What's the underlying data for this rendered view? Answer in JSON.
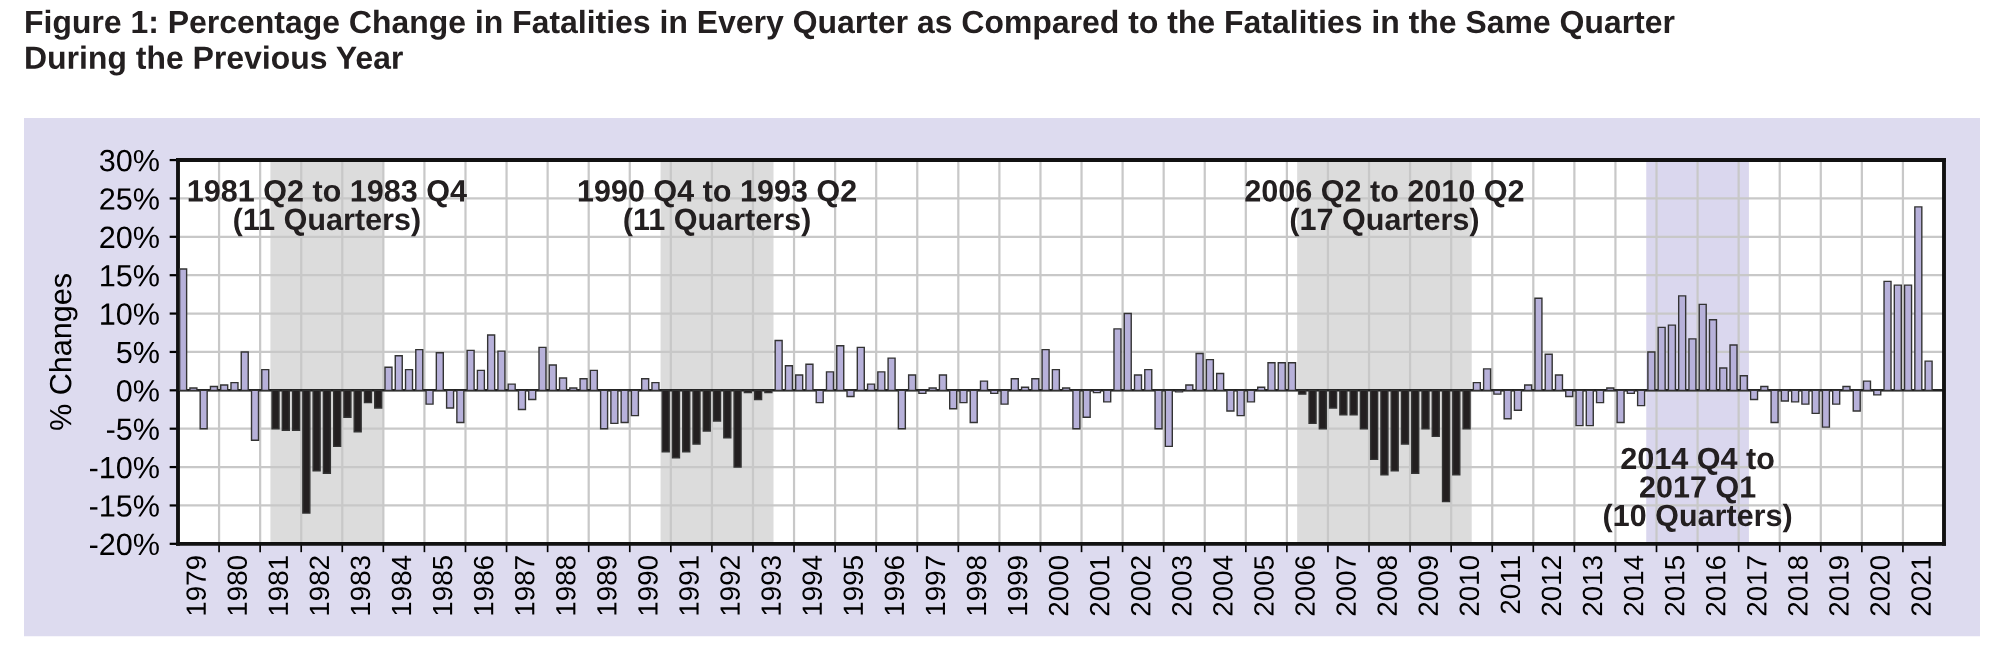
{
  "chart_data": {
    "type": "bar",
    "title": "Figure 1: Percentage Change in Fatalities in Every Quarter as Compared to the Fatalities in the Same Quarter\nDuring the Previous Year",
    "ylabel": "% Changes",
    "x": [
      1979.125,
      1979.375,
      1979.625,
      1979.875,
      1980.125,
      1980.375,
      1980.625,
      1980.875,
      1981.125,
      1981.375,
      1981.625,
      1981.875,
      1982.125,
      1982.375,
      1982.625,
      1982.875,
      1983.125,
      1983.375,
      1983.625,
      1983.875,
      1984.125,
      1984.375,
      1984.625,
      1984.875,
      1985.125,
      1985.375,
      1985.625,
      1985.875,
      1986.125,
      1986.375,
      1986.625,
      1986.875,
      1987.125,
      1987.375,
      1987.625,
      1987.875,
      1988.125,
      1988.375,
      1988.625,
      1988.875,
      1989.125,
      1989.375,
      1989.625,
      1989.875,
      1990.125,
      1990.375,
      1990.625,
      1990.875,
      1991.125,
      1991.375,
      1991.625,
      1991.875,
      1992.125,
      1992.375,
      1992.625,
      1992.875,
      1993.125,
      1993.375,
      1993.625,
      1993.875,
      1994.125,
      1994.375,
      1994.625,
      1994.875,
      1995.125,
      1995.375,
      1995.625,
      1995.875,
      1996.125,
      1996.375,
      1996.625,
      1996.875,
      1997.125,
      1997.375,
      1997.625,
      1997.875,
      1998.125,
      1998.375,
      1998.625,
      1998.875,
      1999.125,
      1999.375,
      1999.625,
      1999.875,
      2000.125,
      2000.375,
      2000.625,
      2000.875,
      2001.125,
      2001.375,
      2001.625,
      2001.875,
      2002.125,
      2002.375,
      2002.625,
      2002.875,
      2003.125,
      2003.375,
      2003.625,
      2003.875,
      2004.125,
      2004.375,
      2004.625,
      2004.875,
      2005.125,
      2005.375,
      2005.625,
      2005.875,
      2006.125,
      2006.375,
      2006.625,
      2006.875,
      2007.125,
      2007.375,
      2007.625,
      2007.875,
      2008.125,
      2008.375,
      2008.625,
      2008.875,
      2009.125,
      2009.375,
      2009.625,
      2009.875,
      2010.125,
      2010.375,
      2010.625,
      2010.875,
      2011.125,
      2011.375,
      2011.625,
      2011.875,
      2012.125,
      2012.375,
      2012.625,
      2012.875,
      2013.125,
      2013.375,
      2013.625,
      2013.875,
      2014.125,
      2014.375,
      2014.625,
      2014.875,
      2015.125,
      2015.375,
      2015.625,
      2015.875,
      2016.125,
      2016.375,
      2016.625,
      2016.875,
      2017.125,
      2017.375,
      2017.625,
      2017.875,
      2018.125,
      2018.375,
      2018.625,
      2018.875,
      2019.125,
      2019.375,
      2019.625,
      2019.875,
      2020.125,
      2020.375,
      2020.625,
      2020.875,
      2021.125,
      2021.375,
      2021.625
    ],
    "values": [
      15.8,
      0.3,
      -5,
      0.5,
      0.7,
      1,
      5,
      -6.5,
      2.7,
      -5,
      -5.2,
      -5.2,
      -16,
      -10.5,
      -10.8,
      -7.3,
      -3.5,
      -5.4,
      -1.6,
      -2.3,
      3,
      4.5,
      2.7,
      5.3,
      -1.8,
      4.9,
      -2.3,
      -4.2,
      5.2,
      2.6,
      7.2,
      5.1,
      0.8,
      -2.5,
      -1.2,
      5.6,
      3.3,
      1.6,
      0.3,
      1.5,
      2.6,
      -5,
      -4.3,
      -4.2,
      -3.3,
      1.5,
      1,
      -8,
      -8.8,
      -8,
      -7,
      -5.3,
      -4,
      -6.2,
      -10,
      -0.3,
      -1.2,
      -0.3,
      6.5,
      3.2,
      2,
      3.4,
      -1.6,
      2.4,
      5.8,
      -0.8,
      5.6,
      0.8,
      2.4,
      4.2,
      -5,
      2,
      -0.4,
      0.3,
      2,
      -2.4,
      -1.6,
      -4.2,
      1.2,
      -0.4,
      -1.8,
      1.5,
      0.4,
      1.5,
      5.3,
      2.7,
      0.3,
      -5,
      -3.5,
      -0.3,
      -1.5,
      8,
      10,
      2,
      2.7,
      -5,
      -7.3,
      -0.2,
      0.7,
      4.8,
      4,
      2.2,
      -2.7,
      -3.3,
      -1.5,
      0.4,
      3.6,
      3.6,
      3.6,
      -0.5,
      -4.3,
      -5,
      -2.3,
      -3.2,
      -3.2,
      -5,
      -9,
      -11,
      -10.5,
      -7,
      -10.8,
      -5,
      -6,
      -14.5,
      -11,
      -5,
      1,
      2.8,
      -0.5,
      -3.7,
      -2.6,
      0.7,
      12,
      4.7,
      2,
      -0.8,
      -4.6,
      -4.6,
      -1.6,
      0.3,
      -4.2,
      -0.4,
      -2,
      5,
      8.2,
      8.5,
      12.3,
      6.7,
      11.2,
      9.2,
      2.9,
      5.9,
      1.9,
      -1.2,
      0.5,
      -4.2,
      -1.4,
      -1.5,
      -1.8,
      -3,
      -4.8,
      -1.8,
      0.5,
      -2.7,
      1.2,
      -0.6,
      14.2,
      13.7,
      13.7,
      23.9,
      3.8
    ],
    "colors": [
      "#b7b1da",
      "#b7b1da",
      "#b7b1da",
      "#b7b1da",
      "#b7b1da",
      "#b7b1da",
      "#b7b1da",
      "#b7b1da",
      "#b7b1da",
      "#231f20",
      "#231f20",
      "#231f20",
      "#231f20",
      "#231f20",
      "#231f20",
      "#231f20",
      "#231f20",
      "#231f20",
      "#231f20",
      "#231f20",
      "#b7b1da",
      "#b7b1da",
      "#b7b1da",
      "#b7b1da",
      "#b7b1da",
      "#b7b1da",
      "#b7b1da",
      "#b7b1da",
      "#b7b1da",
      "#b7b1da",
      "#b7b1da",
      "#b7b1da",
      "#b7b1da",
      "#b7b1da",
      "#b7b1da",
      "#b7b1da",
      "#b7b1da",
      "#b7b1da",
      "#b7b1da",
      "#b7b1da",
      "#b7b1da",
      "#b7b1da",
      "#b7b1da",
      "#b7b1da",
      "#b7b1da",
      "#b7b1da",
      "#b7b1da",
      "#231f20",
      "#231f20",
      "#231f20",
      "#231f20",
      "#231f20",
      "#231f20",
      "#231f20",
      "#231f20",
      "#231f20",
      "#231f20",
      "#231f20",
      "#b7b1da",
      "#b7b1da",
      "#b7b1da",
      "#b7b1da",
      "#b7b1da",
      "#b7b1da",
      "#b7b1da",
      "#b7b1da",
      "#b7b1da",
      "#b7b1da",
      "#b7b1da",
      "#b7b1da",
      "#b7b1da",
      "#b7b1da",
      "#b7b1da",
      "#b7b1da",
      "#b7b1da",
      "#b7b1da",
      "#b7b1da",
      "#b7b1da",
      "#b7b1da",
      "#b7b1da",
      "#b7b1da",
      "#b7b1da",
      "#b7b1da",
      "#b7b1da",
      "#b7b1da",
      "#b7b1da",
      "#b7b1da",
      "#b7b1da",
      "#b7b1da",
      "#b7b1da",
      "#b7b1da",
      "#b7b1da",
      "#b7b1da",
      "#b7b1da",
      "#b7b1da",
      "#b7b1da",
      "#b7b1da",
      "#b7b1da",
      "#b7b1da",
      "#b7b1da",
      "#b7b1da",
      "#b7b1da",
      "#b7b1da",
      "#b7b1da",
      "#b7b1da",
      "#b7b1da",
      "#b7b1da",
      "#b7b1da",
      "#b7b1da",
      "#231f20",
      "#231f20",
      "#231f20",
      "#231f20",
      "#231f20",
      "#231f20",
      "#231f20",
      "#231f20",
      "#231f20",
      "#231f20",
      "#231f20",
      "#231f20",
      "#231f20",
      "#231f20",
      "#231f20",
      "#231f20",
      "#231f20",
      "#b7b1da",
      "#b7b1da",
      "#b7b1da",
      "#b7b1da",
      "#b7b1da",
      "#b7b1da",
      "#b7b1da",
      "#b7b1da",
      "#b7b1da",
      "#b7b1da",
      "#b7b1da",
      "#b7b1da",
      "#b7b1da",
      "#b7b1da",
      "#b7b1da",
      "#b7b1da",
      "#b7b1da",
      "#b7b1da",
      "#b7b1da",
      "#b7b1da",
      "#b7b1da",
      "#b7b1da",
      "#b7b1da",
      "#b7b1da",
      "#b7b1da",
      "#b7b1da",
      "#b7b1da",
      "#b7b1da",
      "#b7b1da",
      "#b7b1da",
      "#b7b1da",
      "#b7b1da",
      "#b7b1da",
      "#b7b1da",
      "#b7b1da",
      "#b7b1da",
      "#b7b1da",
      "#b7b1da",
      "#b7b1da",
      "#b7b1da",
      "#b7b1da",
      "#b7b1da",
      "#b7b1da",
      "#b7b1da",
      "#b7b1da"
    ],
    "xlim": [
      1979,
      2022
    ],
    "xticks": [
      {
        "value": 1979.5,
        "label": "1979"
      },
      {
        "value": 1980.5,
        "label": "1980"
      },
      {
        "value": 1981.5,
        "label": "1981"
      },
      {
        "value": 1982.5,
        "label": "1982"
      },
      {
        "value": 1983.5,
        "label": "1983"
      },
      {
        "value": 1984.5,
        "label": "1984"
      },
      {
        "value": 1985.5,
        "label": "1985"
      },
      {
        "value": 1986.5,
        "label": "1986"
      },
      {
        "value": 1987.5,
        "label": "1987"
      },
      {
        "value": 1988.5,
        "label": "1988"
      },
      {
        "value": 1989.5,
        "label": "1989"
      },
      {
        "value": 1990.5,
        "label": "1990"
      },
      {
        "value": 1991.5,
        "label": "1991"
      },
      {
        "value": 1992.5,
        "label": "1992"
      },
      {
        "value": 1993.5,
        "label": "1993"
      },
      {
        "value": 1994.5,
        "label": "1994"
      },
      {
        "value": 1995.5,
        "label": "1995"
      },
      {
        "value": 1996.5,
        "label": "1996"
      },
      {
        "value": 1997.5,
        "label": "1997"
      },
      {
        "value": 1998.5,
        "label": "1998"
      },
      {
        "value": 1999.5,
        "label": "1999"
      },
      {
        "value": 2000.5,
        "label": "2000"
      },
      {
        "value": 2001.5,
        "label": "2001"
      },
      {
        "value": 2002.5,
        "label": "2002"
      },
      {
        "value": 2003.5,
        "label": "2003"
      },
      {
        "value": 2004.5,
        "label": "2004"
      },
      {
        "value": 2005.5,
        "label": "2005"
      },
      {
        "value": 2006.5,
        "label": "2006"
      },
      {
        "value": 2007.5,
        "label": "2007"
      },
      {
        "value": 2008.5,
        "label": "2008"
      },
      {
        "value": 2009.5,
        "label": "2009"
      },
      {
        "value": 2010.5,
        "label": "2010"
      },
      {
        "value": 2011.5,
        "label": "2011"
      },
      {
        "value": 2012.5,
        "label": "2012"
      },
      {
        "value": 2013.5,
        "label": "2013"
      },
      {
        "value": 2014.5,
        "label": "2014"
      },
      {
        "value": 2015.5,
        "label": "2015"
      },
      {
        "value": 2016.5,
        "label": "2016"
      },
      {
        "value": 2017.5,
        "label": "2017"
      },
      {
        "value": 2018.5,
        "label": "2018"
      },
      {
        "value": 2019.5,
        "label": "2019"
      },
      {
        "value": 2020.5,
        "label": "2020"
      },
      {
        "value": 2021.5,
        "label": "2021"
      },
      {
        "value": 1980,
        "label": null
      },
      {
        "value": 1981,
        "label": null
      },
      {
        "value": 1982,
        "label": null
      },
      {
        "value": 1983,
        "label": null
      },
      {
        "value": 1984,
        "label": null
      },
      {
        "value": 1985,
        "label": null
      },
      {
        "value": 1986,
        "label": null
      },
      {
        "value": 1987,
        "label": null
      },
      {
        "value": 1988,
        "label": null
      },
      {
        "value": 1989,
        "label": null
      },
      {
        "value": 1990,
        "label": null
      },
      {
        "value": 1991,
        "label": null
      },
      {
        "value": 1992,
        "label": null
      },
      {
        "value": 1993,
        "label": null
      },
      {
        "value": 1994,
        "label": null
      },
      {
        "value": 1995,
        "label": null
      },
      {
        "value": 1996,
        "label": null
      },
      {
        "value": 1997,
        "label": null
      },
      {
        "value": 1998,
        "label": null
      },
      {
        "value": 1999,
        "label": null
      },
      {
        "value": 2000,
        "label": null
      },
      {
        "value": 2001,
        "label": null
      },
      {
        "value": 2002,
        "label": null
      },
      {
        "value": 2003,
        "label": null
      },
      {
        "value": 2004,
        "label": null
      },
      {
        "value": 2005,
        "label": null
      },
      {
        "value": 2006,
        "label": null
      },
      {
        "value": 2007,
        "label": null
      },
      {
        "value": 2008,
        "label": null
      },
      {
        "value": 2009,
        "label": null
      },
      {
        "value": 2010,
        "label": null
      },
      {
        "value": 2011,
        "label": null
      },
      {
        "value": 2012,
        "label": null
      },
      {
        "value": 2013,
        "label": null
      },
      {
        "value": 2014,
        "label": null
      },
      {
        "value": 2015,
        "label": null
      },
      {
        "value": 2016,
        "label": null
      },
      {
        "value": 2017,
        "label": null
      },
      {
        "value": 2018,
        "label": null
      },
      {
        "value": 2019,
        "label": null
      },
      {
        "value": 2020,
        "label": null
      },
      {
        "value": 2021,
        "label": null
      }
    ],
    "ylim": [
      -20,
      30
    ],
    "yticks": [
      {
        "value": -20,
        "label": "-20%"
      },
      {
        "value": -15,
        "label": "-15%"
      },
      {
        "value": -10,
        "label": "-10%"
      },
      {
        "value": -5,
        "label": "-5%"
      },
      {
        "value": 0,
        "label": "0%"
      },
      {
        "value": 5,
        "label": "5%"
      },
      {
        "value": 10,
        "label": "10%"
      },
      {
        "value": 15,
        "label": "15%"
      },
      {
        "value": 20,
        "label": "20%"
      },
      {
        "value": 25,
        "label": "25%"
      },
      {
        "value": 30,
        "label": "30%"
      }
    ],
    "bands": [
      {
        "axis": "x",
        "from": 1981.25,
        "to": 1984,
        "label": "1981 Q2 to 1983 Q4\n(11 Quarters)",
        "color": "#dcdcdc"
      },
      {
        "axis": "x",
        "from": 1990.75,
        "to": 1993.5,
        "label": "1990 Q4 to 1993 Q2\n(11 Quarters)",
        "color": "#dcdcdc"
      },
      {
        "axis": "x",
        "from": 2006.25,
        "to": 2010.5,
        "label": "2006 Q2 to 2010 Q2\n(17 Quarters)",
        "color": "#dcdcdc"
      },
      {
        "axis": "x",
        "from": 2014.75,
        "to": 2017.25,
        "label": "2014 Q4 to\n2017 Q1\n(10 Quarters)",
        "color": "#dad7ee"
      }
    ],
    "grid": true
  }
}
